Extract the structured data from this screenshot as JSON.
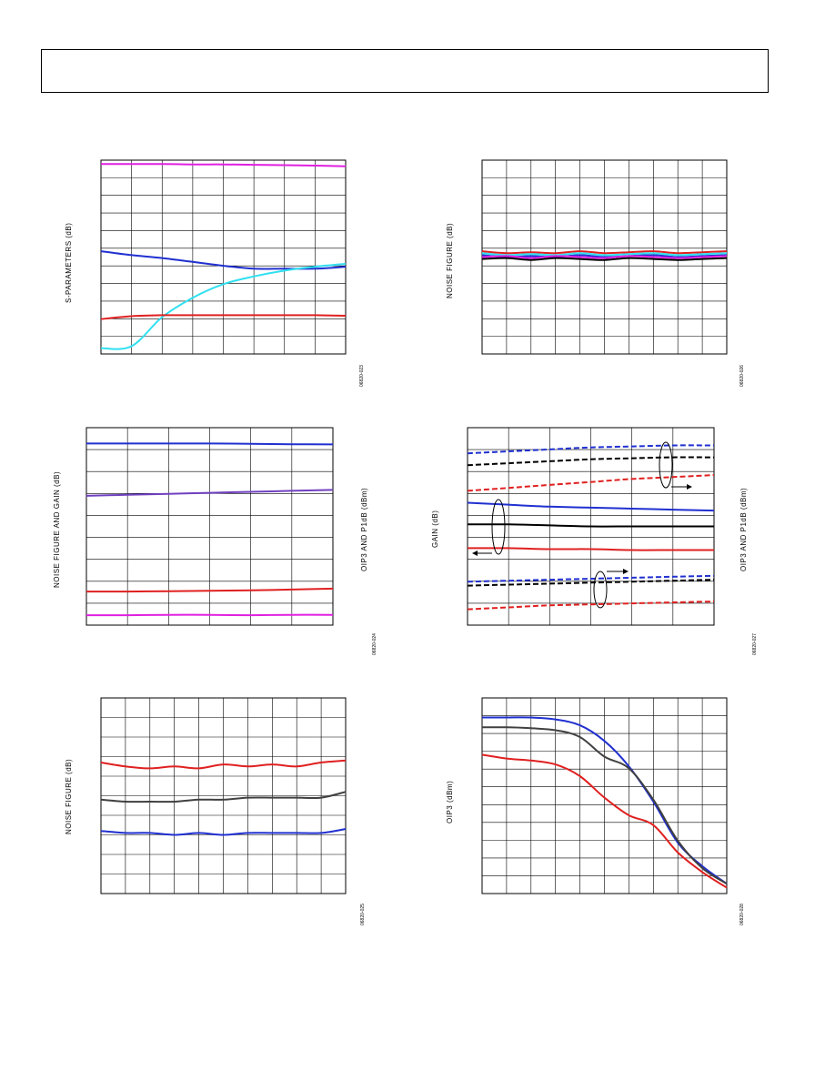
{
  "page": {
    "header_text": ""
  },
  "figures": [
    {
      "id": "fig1",
      "ylabel": "S-PARAMETERS (dB)",
      "figure_id": "06820-023"
    },
    {
      "id": "fig2",
      "ylabel": "NOISE FIGURE (dB)",
      "figure_id": "06820-026"
    },
    {
      "id": "fig3",
      "ylabel": "NOISE FIGURE AND GAIN (dB)",
      "y2label": "",
      "figure_id": "06820-024"
    },
    {
      "id": "fig4",
      "ylabel": "GAIN (dB)",
      "y2label": "OIP3 AND P1dB (dBm)",
      "figure_id": "06820-027"
    },
    {
      "id": "fig5",
      "ylabel": "NOISE FIGURE (dB)",
      "figure_id": "06820-025"
    },
    {
      "id": "fig6",
      "ylabel": "OIP3 (dBm)",
      "figure_id": "06820-028"
    }
  ],
  "fig3_right_label": "OIP3 AND P1dB (dBm)",
  "colors": {
    "magenta": "#e020e0",
    "blue": "#2030d0",
    "cyan": "#30e0f0",
    "red": "#e02020",
    "purple": "#7040c0",
    "black": "#000000",
    "gray": "#404040"
  },
  "chart_data": [
    {
      "type": "line",
      "x": [
        0,
        1,
        2,
        3,
        4,
        5,
        6,
        7,
        8
      ],
      "xlim": [
        0,
        8
      ],
      "ylim": [
        0,
        10
      ],
      "grid": true,
      "series": [
        {
          "values": [
            9.8,
            9.8,
            9.8,
            9.78,
            9.78,
            9.76,
            9.74,
            9.72,
            9.68
          ],
          "color": "magenta"
        },
        {
          "values": [
            5.3,
            5.1,
            4.95,
            4.75,
            4.55,
            4.4,
            4.4,
            4.4,
            4.5
          ],
          "color": "blue"
        },
        {
          "values": [
            0.3,
            0.4,
            1.9,
            2.9,
            3.6,
            4.0,
            4.3,
            4.5,
            4.65
          ],
          "color": "cyan"
        },
        {
          "values": [
            1.8,
            1.95,
            2.0,
            2.0,
            2.0,
            2.0,
            2.0,
            2.0,
            1.97
          ],
          "color": "red"
        }
      ]
    },
    {
      "type": "line",
      "x": [
        0,
        1,
        2,
        3,
        4,
        5,
        6,
        7,
        8,
        9,
        10
      ],
      "xlim": [
        0,
        10
      ],
      "ylim": [
        0,
        10
      ],
      "grid": true,
      "series": [
        {
          "values": [
            5.3,
            5.2,
            5.25,
            5.2,
            5.3,
            5.2,
            5.25,
            5.3,
            5.2,
            5.25,
            5.3
          ],
          "color": "red"
        },
        {
          "values": [
            5.1,
            5.0,
            5.05,
            5.0,
            5.1,
            5.0,
            5.05,
            5.1,
            5.0,
            5.05,
            5.1
          ],
          "color": "blue"
        },
        {
          "values": [
            4.9,
            4.95,
            4.85,
            4.95,
            4.9,
            4.85,
            4.95,
            4.9,
            4.85,
            4.9,
            4.95
          ],
          "color": "black"
        },
        {
          "values": [
            5.2,
            5.1,
            5.15,
            5.1,
            5.2,
            5.1,
            5.15,
            5.2,
            5.1,
            5.15,
            5.2
          ],
          "color": "cyan"
        },
        {
          "values": [
            5.0,
            5.05,
            4.95,
            5.05,
            5.0,
            4.95,
            5.05,
            5.0,
            4.95,
            5.0,
            5.05
          ],
          "color": "magenta"
        }
      ]
    },
    {
      "type": "line",
      "x": [
        0,
        1,
        2,
        3,
        4,
        5,
        6
      ],
      "xlim": [
        0,
        6
      ],
      "ylim": [
        0,
        10
      ],
      "grid": true,
      "series": [
        {
          "values": [
            9.2,
            9.2,
            9.2,
            9.2,
            9.18,
            9.16,
            9.15
          ],
          "color": "blue"
        },
        {
          "values": [
            6.55,
            6.6,
            6.65,
            6.7,
            6.75,
            6.8,
            6.85
          ],
          "color": "purple"
        },
        {
          "values": [
            1.7,
            1.7,
            1.72,
            1.74,
            1.76,
            1.8,
            1.85
          ],
          "color": "red"
        },
        {
          "values": [
            0.5,
            0.5,
            0.52,
            0.52,
            0.5,
            0.52,
            0.52
          ],
          "color": "magenta"
        }
      ]
    },
    {
      "type": "line",
      "x": [
        0,
        1,
        2,
        3,
        4,
        5,
        6
      ],
      "xlim": [
        0,
        6
      ],
      "ylim": [
        0,
        10
      ],
      "grid": true,
      "series": [
        {
          "values": [
            8.7,
            8.8,
            8.9,
            9.0,
            9.05,
            9.1,
            9.1
          ],
          "color": "blue",
          "dash": true
        },
        {
          "values": [
            8.1,
            8.2,
            8.3,
            8.4,
            8.45,
            8.5,
            8.5
          ],
          "color": "black",
          "dash": true
        },
        {
          "values": [
            6.8,
            6.95,
            7.1,
            7.25,
            7.4,
            7.5,
            7.6
          ],
          "color": "red",
          "dash": true
        },
        {
          "values": [
            6.2,
            6.1,
            6.0,
            5.95,
            5.9,
            5.85,
            5.8
          ],
          "color": "blue"
        },
        {
          "values": [
            5.1,
            5.1,
            5.05,
            5.0,
            5.0,
            5.0,
            5.0
          ],
          "color": "black"
        },
        {
          "values": [
            3.9,
            3.9,
            3.85,
            3.85,
            3.8,
            3.8,
            3.8
          ],
          "color": "red"
        },
        {
          "values": [
            2.2,
            2.25,
            2.3,
            2.35,
            2.4,
            2.45,
            2.5
          ],
          "color": "blue",
          "dash": true
        },
        {
          "values": [
            2.0,
            2.05,
            2.1,
            2.15,
            2.2,
            2.25,
            2.3
          ],
          "color": "black",
          "dash": true
        },
        {
          "values": [
            0.8,
            0.9,
            1.0,
            1.05,
            1.1,
            1.15,
            1.2
          ],
          "color": "red",
          "dash": true
        }
      ]
    },
    {
      "type": "line",
      "x": [
        0,
        1,
        2,
        3,
        4,
        5,
        6,
        7,
        8,
        9,
        10
      ],
      "xlim": [
        0,
        10
      ],
      "ylim": [
        0,
        10
      ],
      "grid": true,
      "series": [
        {
          "values": [
            6.7,
            6.5,
            6.4,
            6.5,
            6.4,
            6.6,
            6.5,
            6.6,
            6.5,
            6.7,
            6.8
          ],
          "color": "red"
        },
        {
          "values": [
            4.8,
            4.7,
            4.7,
            4.7,
            4.8,
            4.8,
            4.9,
            4.9,
            4.9,
            4.9,
            5.2
          ],
          "color": "gray"
        },
        {
          "values": [
            3.2,
            3.1,
            3.1,
            3.0,
            3.1,
            3.0,
            3.1,
            3.1,
            3.1,
            3.1,
            3.3
          ],
          "color": "blue"
        }
      ]
    },
    {
      "type": "line",
      "x": [
        0,
        1,
        2,
        3,
        4,
        5,
        6,
        7,
        8,
        9,
        10
      ],
      "xlim": [
        0,
        10
      ],
      "ylim": [
        0,
        10
      ],
      "grid": true,
      "series": [
        {
          "values": [
            9.0,
            9.0,
            9.0,
            8.9,
            8.6,
            7.8,
            6.5,
            4.7,
            2.6,
            1.4,
            0.5
          ],
          "color": "blue"
        },
        {
          "values": [
            8.5,
            8.5,
            8.45,
            8.35,
            8.0,
            7.0,
            6.4,
            4.8,
            2.7,
            1.3,
            0.5
          ],
          "color": "gray"
        },
        {
          "values": [
            7.1,
            6.9,
            6.8,
            6.6,
            6.0,
            4.9,
            4.0,
            3.5,
            2.1,
            1.1,
            0.3
          ],
          "color": "red"
        }
      ]
    }
  ]
}
